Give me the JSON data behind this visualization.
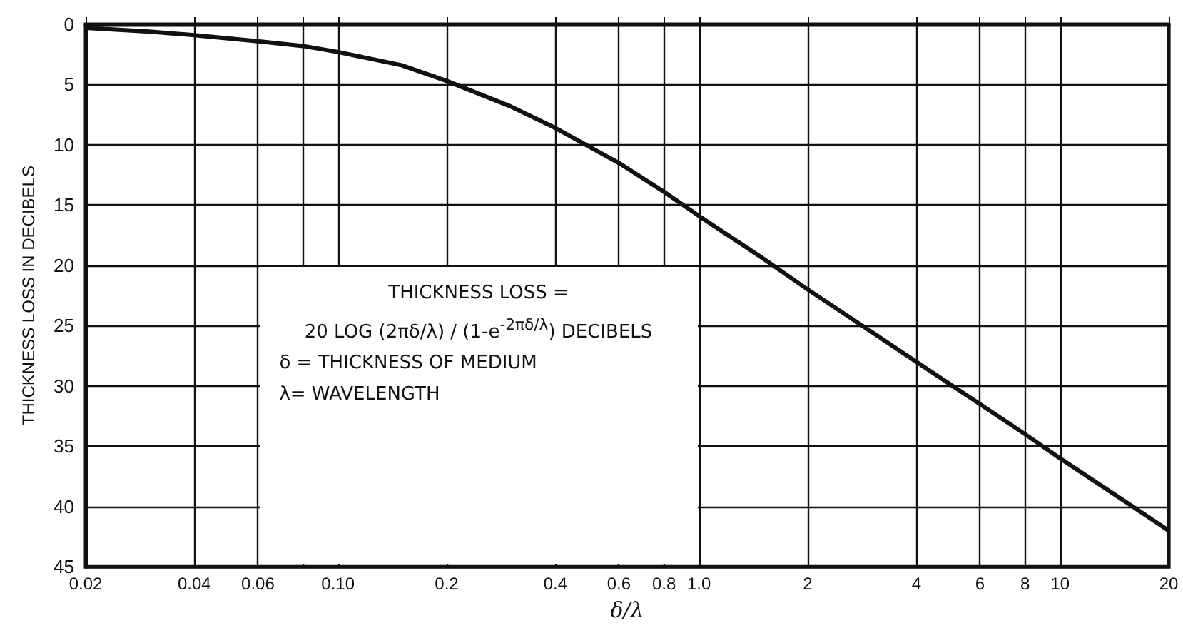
{
  "chart_data": {
    "type": "line",
    "xlabel": "δ/λ",
    "ylabel": "THICKNESS LOSS IN DECIBELS",
    "x": [
      0.02,
      0.03,
      0.04,
      0.06,
      0.08,
      0.1,
      0.15,
      0.2,
      0.3,
      0.4,
      0.5,
      0.6,
      0.8,
      1,
      1.5,
      2,
      3,
      4,
      6,
      8,
      10,
      15,
      20
    ],
    "series": [
      {
        "color": "#111111",
        "values": [
          0.3,
          0.6,
          0.9,
          1.4,
          1.8,
          2.3,
          3.4,
          4.7,
          6.8,
          8.6,
          10.2,
          11.5,
          13.9,
          15.9,
          19.4,
          22,
          25.5,
          28,
          31.5,
          34,
          36,
          39.5,
          42
        ]
      }
    ],
    "log": "x",
    "xlim": [
      0.02,
      20
    ],
    "ylim": [
      45,
      0
    ],
    "xticks": [
      {
        "value": 0.02,
        "label": "0.02"
      },
      {
        "value": 0.04,
        "label": "0.04"
      },
      {
        "value": 0.06,
        "label": "0.06"
      },
      {
        "value": 0.08,
        "label": null
      },
      {
        "value": 0.1,
        "label": "0.10"
      },
      {
        "value": 0.2,
        "label": "0.2"
      },
      {
        "value": 0.4,
        "label": "0.4"
      },
      {
        "value": 0.6,
        "label": "0.6"
      },
      {
        "value": 0.8,
        "label": "0.8"
      },
      {
        "value": 1,
        "label": "1.0"
      },
      2,
      4,
      6,
      8,
      10,
      20
    ],
    "yticks": [
      0,
      5,
      10,
      15,
      20,
      25,
      30,
      35,
      40,
      45
    ],
    "grid": true,
    "marker": "none",
    "line_style": "solid",
    "annotations": [
      "THICKNESS LOSS =",
      "20 LOG (2πδ/λ) / (1-e$^{-2πδ/λ}$) DECIBELS",
      "δ = THICKNESS OF MEDIUM",
      "λ= WAVELENGTH"
    ]
  }
}
